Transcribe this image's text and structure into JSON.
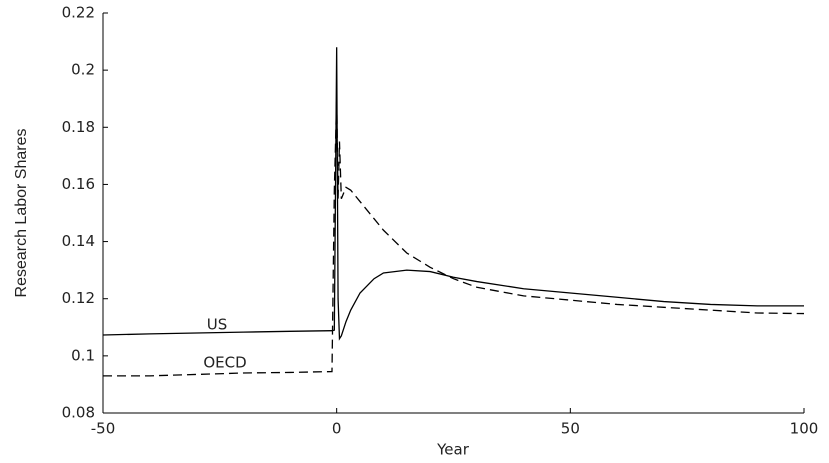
{
  "chart_data": {
    "type": "line",
    "x_label": "Year",
    "y_label": "Research Labor Shares",
    "x": [
      -50,
      -40,
      -30,
      -20,
      -10,
      -1,
      -0.5,
      0,
      0.3,
      0.6,
      1,
      2,
      3,
      5,
      8,
      10,
      15,
      20,
      25,
      30,
      40,
      50,
      60,
      70,
      80,
      90,
      100
    ],
    "series": [
      {
        "name": "US",
        "color": "#000000",
        "dash": "solid",
        "values": [
          0.1073,
          0.1077,
          0.108,
          0.1083,
          0.1086,
          0.1088,
          0.109,
          0.208,
          0.12,
          0.106,
          0.107,
          0.112,
          0.116,
          0.122,
          0.127,
          0.129,
          0.13,
          0.1295,
          0.1275,
          0.126,
          0.1235,
          0.122,
          0.1205,
          0.119,
          0.118,
          0.1175,
          0.1175
        ]
      },
      {
        "name": "OECD",
        "color": "#000000",
        "dash": "dashed",
        "values": [
          0.093,
          0.093,
          0.0935,
          0.094,
          0.0942,
          0.0945,
          0.158,
          0.19,
          0.155,
          0.175,
          0.155,
          0.159,
          0.158,
          0.154,
          0.148,
          0.144,
          0.136,
          0.131,
          0.127,
          0.124,
          0.121,
          0.1195,
          0.118,
          0.117,
          0.116,
          0.115,
          0.1148
        ]
      }
    ],
    "xlim": [
      -50,
      100
    ],
    "xticks": [
      -50,
      0,
      50,
      100
    ],
    "ylim": [
      0.08,
      0.22
    ],
    "yticks": [
      0.08,
      0.1,
      0.12,
      0.14,
      0.16,
      0.18,
      0.2,
      0.22
    ],
    "grid": false
  }
}
